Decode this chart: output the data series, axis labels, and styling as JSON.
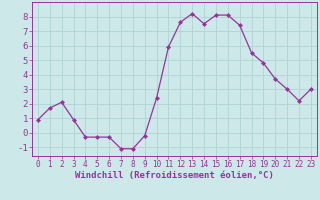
{
  "x": [
    0,
    1,
    2,
    3,
    4,
    5,
    6,
    7,
    8,
    9,
    10,
    11,
    12,
    13,
    14,
    15,
    16,
    17,
    18,
    19,
    20,
    21,
    22,
    23
  ],
  "y": [
    0.9,
    1.7,
    2.1,
    0.9,
    -0.3,
    -0.3,
    -0.3,
    -1.1,
    -1.1,
    -0.2,
    2.4,
    5.9,
    7.6,
    8.2,
    7.5,
    8.1,
    8.1,
    7.4,
    5.5,
    4.8,
    3.7,
    3.0,
    2.2,
    3.0
  ],
  "line_color": "#993399",
  "marker": "D",
  "marker_size": 2,
  "bg_color": "#cce8e8",
  "grid_color": "#aacfcf",
  "xlabel": "Windchill (Refroidissement éolien,°C)",
  "xlabel_fontsize": 6.5,
  "xtick_fontsize": 5.5,
  "ytick_fontsize": 6.5,
  "xlim": [
    -0.5,
    23.5
  ],
  "ylim": [
    -1.6,
    9.0
  ],
  "yticks": [
    -1,
    0,
    1,
    2,
    3,
    4,
    5,
    6,
    7,
    8
  ],
  "spine_color": "#993399",
  "tick_color": "#993399",
  "label_color": "#993399",
  "line_width": 0.9
}
